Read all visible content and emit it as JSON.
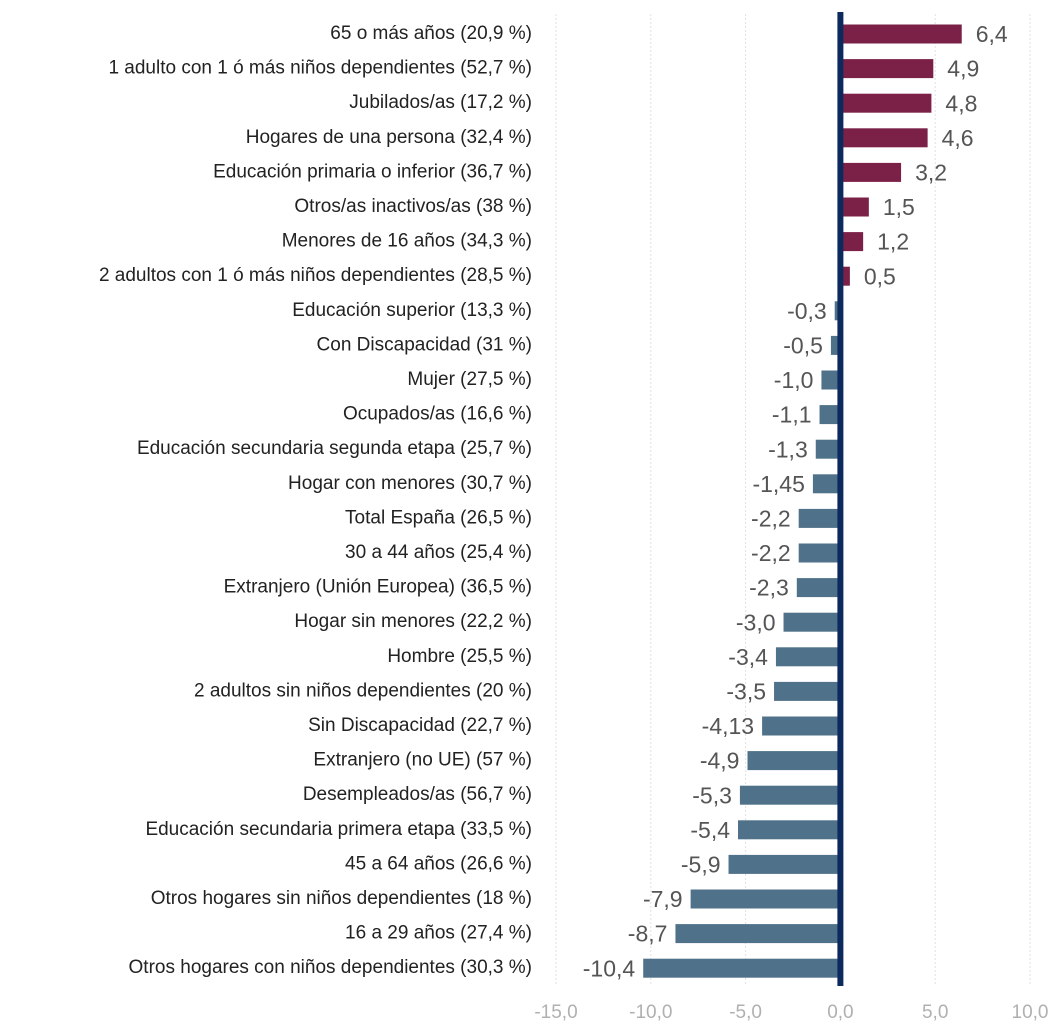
{
  "chart_data": {
    "type": "barh",
    "categories": [
      "65 o más años (20,9 %)",
      "1 adulto con 1 ó más niños dependientes (52,7 %)",
      "Jubilados/as (17,2 %)",
      "Hogares de una persona (32,4 %)",
      "Educación primaria o inferior (36,7 %)",
      "Otros/as inactivos/as (38 %)",
      "Menores de 16 años (34,3 %)",
      "2 adultos con 1 ó más niños dependientes (28,5 %)",
      "Educación superior (13,3 %)",
      "Con Discapacidad  (31 %)",
      "Mujer (27,5 %)",
      "Ocupados/as (16,6 %)",
      "Educación secundaria segunda etapa (25,7 %)",
      "Hogar con menores (30,7 %)",
      "Total España (26,5 %)",
      "30 a 44 años (25,4 %)",
      "Extranjero (Unión Europea) (36,5 %)",
      "Hogar sin menores (22,2 %)",
      "Hombre (25,5 %)",
      "2 adultos sin niños dependientes (20 %)",
      "Sin Discapacidad  (22,7 %)",
      "Extranjero (no UE) (57 %)",
      "Desempleados/as (56,7 %)",
      "Educación secundaria primera etapa (33,5 %)",
      "45 a 64 años (26,6 %)",
      "Otros hogares sin niños dependientes (18 %)",
      "16 a 29 años (27,4 %)",
      "Otros hogares con niños dependientes (30,3 %)"
    ],
    "values": [
      6.4,
      4.9,
      4.8,
      4.6,
      3.2,
      1.5,
      1.2,
      0.5,
      -0.3,
      -0.5,
      -1.0,
      -1.1,
      -1.3,
      -1.45,
      -2.2,
      -2.2,
      -2.3,
      -3.0,
      -3.4,
      -3.5,
      -4.13,
      -4.9,
      -5.3,
      -5.4,
      -5.9,
      -7.9,
      -8.7,
      -10.4
    ],
    "value_labels": [
      "6,4",
      "4,9",
      "4,8",
      "4,6",
      "3,2",
      "1,5",
      "1,2",
      "0,5",
      "-0,3",
      "-0,5",
      "-1,0",
      "-1,1",
      "-1,3",
      "-1,45",
      "-2,2",
      "-2,2",
      "-2,3",
      "-3,0",
      "-3,4",
      "-3,5",
      "-4,13",
      "-4,9",
      "-5,3",
      "-5,4",
      "-5,9",
      "-7,9",
      "-8,7",
      "-10,4"
    ],
    "color_positive": "#7b2148",
    "color_negative": "#4f7189",
    "xlim": [
      -15,
      10
    ],
    "xticks": [
      {
        "value": -15,
        "label": "-15,0"
      },
      {
        "value": -10,
        "label": "-10,0"
      },
      {
        "value": -5,
        "label": "-5,0"
      },
      {
        "value": 0,
        "label": "0,0"
      },
      {
        "value": 5,
        "label": "5,0"
      },
      {
        "value": 10,
        "label": "10,0"
      }
    ],
    "grid": true
  }
}
